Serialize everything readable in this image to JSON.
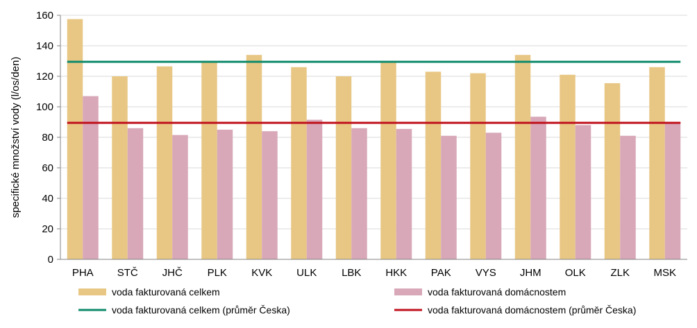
{
  "chart_data": {
    "type": "bar",
    "title": "",
    "xlabel": "",
    "ylabel": "specifické množství vody (l/os/den)",
    "ylim": [
      0,
      160
    ],
    "yticks": [
      0,
      20,
      40,
      60,
      80,
      100,
      120,
      140,
      160
    ],
    "grid": true,
    "legend_position": "bottom",
    "categories": [
      "PHA",
      "STČ",
      "JHČ",
      "PLK",
      "KVK",
      "ULK",
      "LBK",
      "HKK",
      "PAK",
      "VYS",
      "JHM",
      "OLK",
      "ZLK",
      "MSK"
    ],
    "series": [
      {
        "name": "voda fakturovaná celkem",
        "color": "#e8c785",
        "values": [
          157.5,
          120,
          126.5,
          129,
          134,
          126,
          120,
          129,
          123,
          122,
          134,
          121,
          115.5,
          126
        ]
      },
      {
        "name": "voda fakturovaná domácnostem",
        "color": "#d8a8b8",
        "values": [
          107,
          86,
          81.5,
          85,
          84,
          91.5,
          86,
          85.5,
          81,
          83,
          93.5,
          88,
          81,
          90
        ]
      }
    ],
    "reference_lines": [
      {
        "name": "voda fakturovaná celkem (průměr Česka)",
        "color": "#0e8a6b",
        "value": 129.5
      },
      {
        "name": "voda fakturovaná domácnostem (průměr Česka)",
        "color": "#c0121d",
        "value": 89.5
      }
    ]
  }
}
